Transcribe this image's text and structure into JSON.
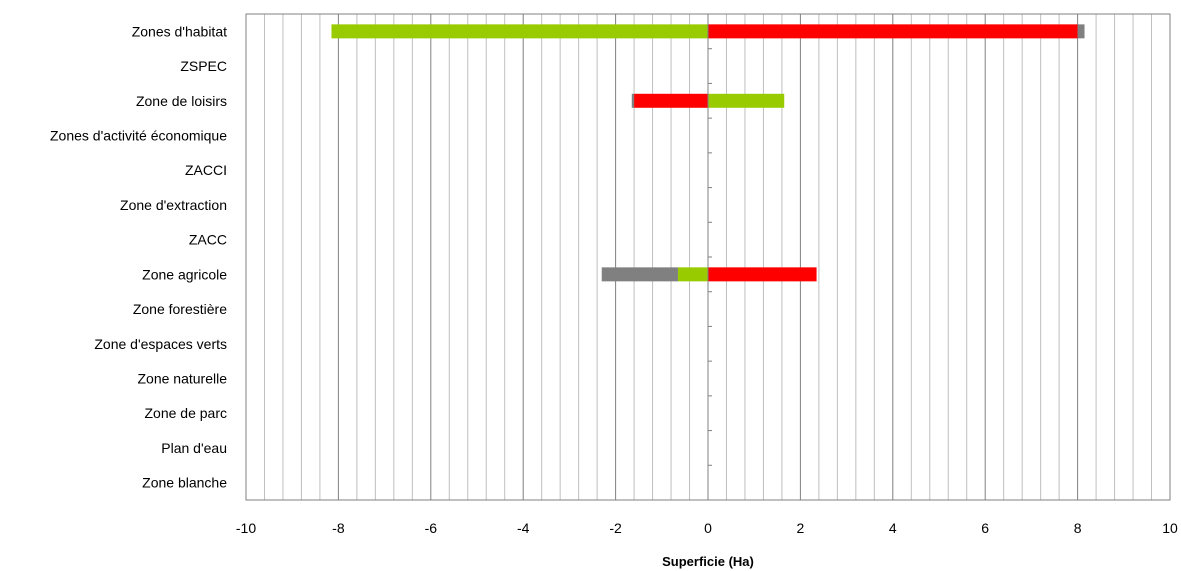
{
  "chart_data": {
    "type": "bar",
    "orientation": "horizontal",
    "stacked": true,
    "title": "",
    "xlabel": "Superficie (Ha)",
    "ylabel": "",
    "xlim": [
      -10,
      10
    ],
    "x_ticks": [
      -10,
      -8,
      -6,
      -4,
      -2,
      0,
      2,
      4,
      6,
      8,
      10
    ],
    "x_tick_labels": [
      "-10",
      "-8",
      "-6",
      "-4",
      "-2",
      "0",
      "2",
      "4",
      "6",
      "8",
      "10"
    ],
    "grid": true,
    "legend": "none",
    "categories": [
      "Zones d'habitat",
      "ZSPEC",
      "Zone de loisirs",
      "Zones d'activité économique",
      "ZACCI",
      "Zone d'extraction",
      "ZACC",
      "Zone agricole",
      "Zone forestière",
      "Zone d'espaces verts",
      "Zone naturelle",
      "Zone de parc",
      "Plan d'eau",
      "Zone blanche"
    ],
    "series": [
      {
        "color": "#99cc00",
        "values": [
          -8.15,
          0,
          1.65,
          0,
          0,
          0,
          0,
          -0.65,
          0,
          0,
          0,
          0,
          0,
          0
        ]
      },
      {
        "color": "#ff0000",
        "values": [
          8.0,
          0,
          -1.6,
          0,
          0,
          0,
          0,
          2.35,
          0,
          0,
          0,
          0,
          0,
          0
        ]
      },
      {
        "color": "#808080",
        "values": [
          0.15,
          0,
          -0.05,
          0,
          0,
          0,
          0,
          -1.65,
          0,
          0,
          0,
          0,
          0,
          0
        ]
      }
    ]
  }
}
